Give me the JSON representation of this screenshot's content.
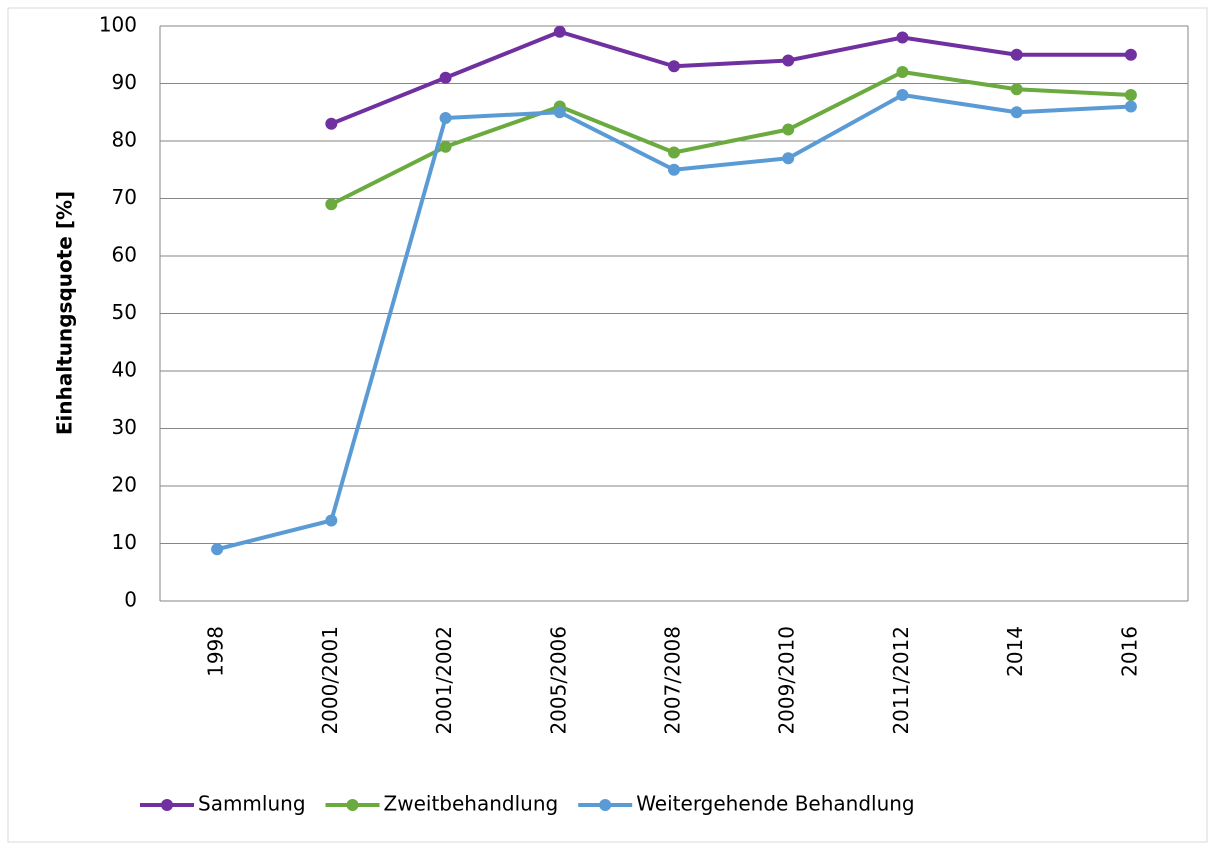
{
  "chart_data": {
    "type": "line",
    "y_label": "Einhaltungsquote  [%]",
    "categories": [
      "1998",
      "2000/2001",
      "2001/2002",
      "2005/2006",
      "2007/2008",
      "2009/2010",
      "2011/2012",
      "2014",
      "2016"
    ],
    "series": [
      {
        "name": "Sammlung",
        "color": "#7030a0",
        "values": [
          null,
          83,
          91,
          99,
          93,
          94,
          98,
          95,
          95
        ]
      },
      {
        "name": "Zweitbehandlung",
        "color": "#6aaa3f",
        "values": [
          null,
          69,
          79,
          86,
          78,
          82,
          92,
          89,
          88
        ]
      },
      {
        "name": "Weitergehende Behandlung",
        "color": "#5b9bd5",
        "values": [
          9,
          14,
          84,
          85,
          75,
          77,
          88,
          85,
          86
        ]
      }
    ],
    "ylim": [
      0,
      100
    ],
    "yticks": [
      0,
      10,
      20,
      30,
      40,
      50,
      60,
      70,
      80,
      90,
      100
    ],
    "grid": true,
    "legend": "bottom"
  }
}
